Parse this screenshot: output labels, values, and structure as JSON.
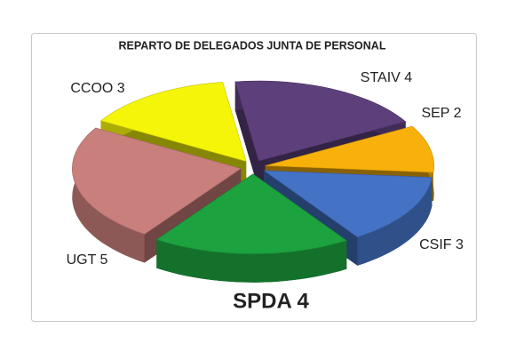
{
  "chart_data": {
    "type": "pie3d",
    "title": "REPARTO DE DELEGADOS  JUNTA DE PERSONAL",
    "values": [
      4,
      2,
      3,
      4,
      5,
      3
    ],
    "value_labels": [
      "STAIV 4",
      "SEP 2",
      "CSIF 3",
      "SPDA 4",
      "UGT 5",
      "CCOO  3"
    ],
    "colors": [
      "#5d3f7c",
      "#f7b10a",
      "#4472c4",
      "#1ca23f",
      "#c97f7c",
      "#f5f50a"
    ]
  }
}
